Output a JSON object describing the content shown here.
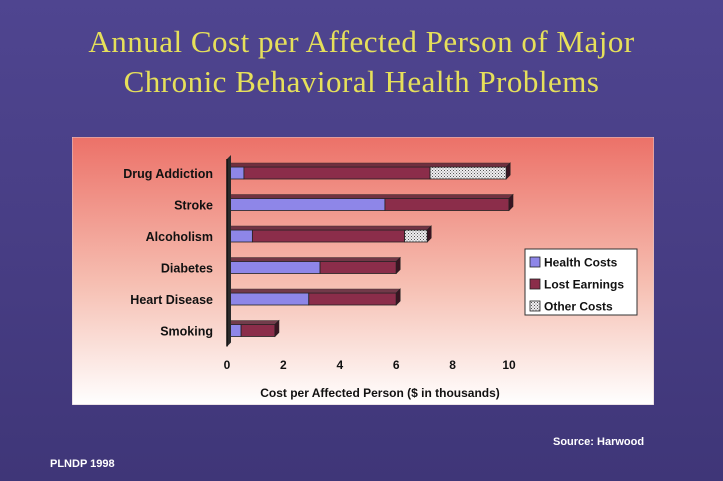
{
  "slide": {
    "title_line1": "Annual Cost per Affected Person of Major",
    "title_line2": "Chronic Behavioral  Health Problems",
    "source": "Source: Harwood",
    "footer": "PLNDP  1998"
  },
  "colors": {
    "health_costs": "#8e86e8",
    "lost_earnings": "#8b2d4a",
    "other_costs": "#e9e6ea",
    "title_text": "#e6e05a",
    "background": "#4a3f86"
  },
  "chart_data": {
    "type": "bar",
    "orientation": "horizontal",
    "stacked": true,
    "title": "Annual Cost per Affected Person of Major Chronic Behavioral  Health Problems",
    "xlabel": "Cost per Affected Person ($ in thousands)",
    "ylabel": "",
    "xlim": [
      0,
      10
    ],
    "x_ticks": [
      "0",
      "2",
      "4",
      "6",
      "8",
      "10"
    ],
    "grid": false,
    "legend_position": "right",
    "categories": [
      "Drug Addiction",
      "Stroke",
      "Alcoholism",
      "Diabetes",
      "Heart Disease",
      "Smoking"
    ],
    "series": [
      {
        "name": "Health Costs",
        "values": [
          0.6,
          5.6,
          0.9,
          3.3,
          2.9,
          0.5
        ]
      },
      {
        "name": "Lost Earnings",
        "values": [
          6.6,
          4.4,
          5.4,
          2.7,
          3.1,
          1.2
        ]
      },
      {
        "name": "Other Costs",
        "values": [
          2.7,
          0,
          0.8,
          0,
          0,
          0
        ]
      }
    ]
  }
}
